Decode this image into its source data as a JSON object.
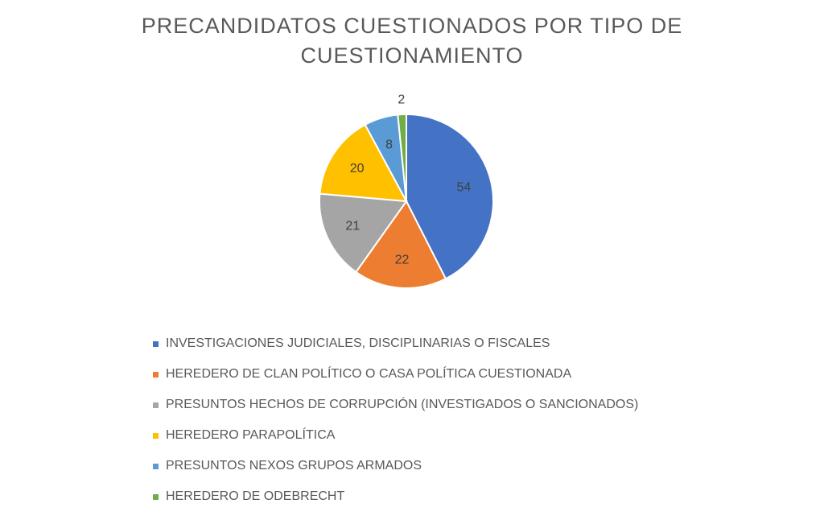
{
  "chart_data": {
    "type": "pie",
    "title": "PRECANDIDATOS CUESTIONADOS POR TIPO DE CUESTIONAMIENTO",
    "legend_position": "bottom",
    "series": [
      {
        "values": [
          54,
          22,
          21,
          20,
          8,
          2
        ],
        "labels": [
          "INVESTIGACIONES JUDICIALES, DISCIPLINARIAS O FISCALES",
          "HEREDERO DE CLAN POLÍTICO O CASA POLÍTICA CUESTIONADA",
          "PRESUNTOS HECHOS DE CORRUPCIÓN (INVESTIGADOS O SANCIONADOS)",
          "HEREDERO PARAPOLÍTICA",
          "PRESUNTOS NEXOS GRUPOS ARMADOS",
          "HEREDERO DE ODEBRECHT"
        ],
        "colors": [
          "#4472C4",
          "#ED7D31",
          "#A5A5A5",
          "#FFC000",
          "#5B9BD5",
          "#70AD47"
        ]
      }
    ]
  }
}
